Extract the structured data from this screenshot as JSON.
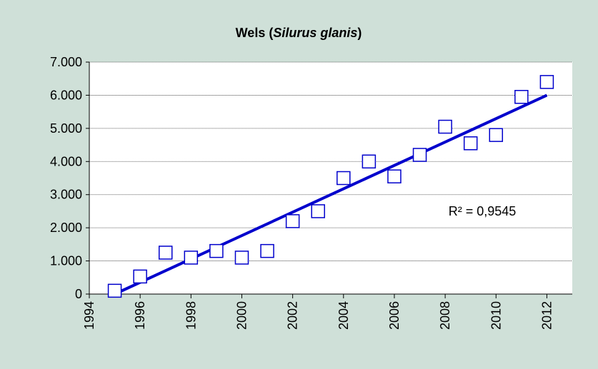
{
  "chart_data": {
    "type": "scatter",
    "title_parts": [
      "Wels (",
      "Silurus glanis",
      ")"
    ],
    "x": [
      1995,
      1996,
      1997,
      1998,
      1999,
      2000,
      2001,
      2002,
      2003,
      2004,
      2005,
      2006,
      2007,
      2008,
      2009,
      2010,
      2011,
      2012
    ],
    "values": [
      100,
      530,
      1250,
      1100,
      1300,
      1100,
      1300,
      2200,
      2500,
      3500,
      4000,
      3550,
      4200,
      5050,
      4550,
      4800,
      5950,
      6400
    ],
    "color": "#0000cc",
    "trendline": {
      "x": [
        1995,
        2012
      ],
      "values": [
        0,
        6000
      ],
      "color": "#0000cc"
    },
    "annotation": "R² = 0,9545",
    "xlim": [
      1994,
      2013
    ],
    "xticks": [
      1994,
      1996,
      1998,
      2000,
      2002,
      2004,
      2006,
      2008,
      2010,
      2012
    ],
    "ylim": [
      0,
      7000
    ],
    "yticks": [
      0,
      {
        "value": 1000,
        "label": "1.000"
      },
      {
        "value": 2000,
        "label": "2.000"
      },
      {
        "value": 3000,
        "label": "3.000"
      },
      {
        "value": 4000,
        "label": "4.000"
      },
      {
        "value": 5000,
        "label": "5.000"
      },
      {
        "value": 6000,
        "label": "6.000"
      },
      {
        "value": 7000,
        "label": "7.000"
      }
    ],
    "grid": true
  }
}
